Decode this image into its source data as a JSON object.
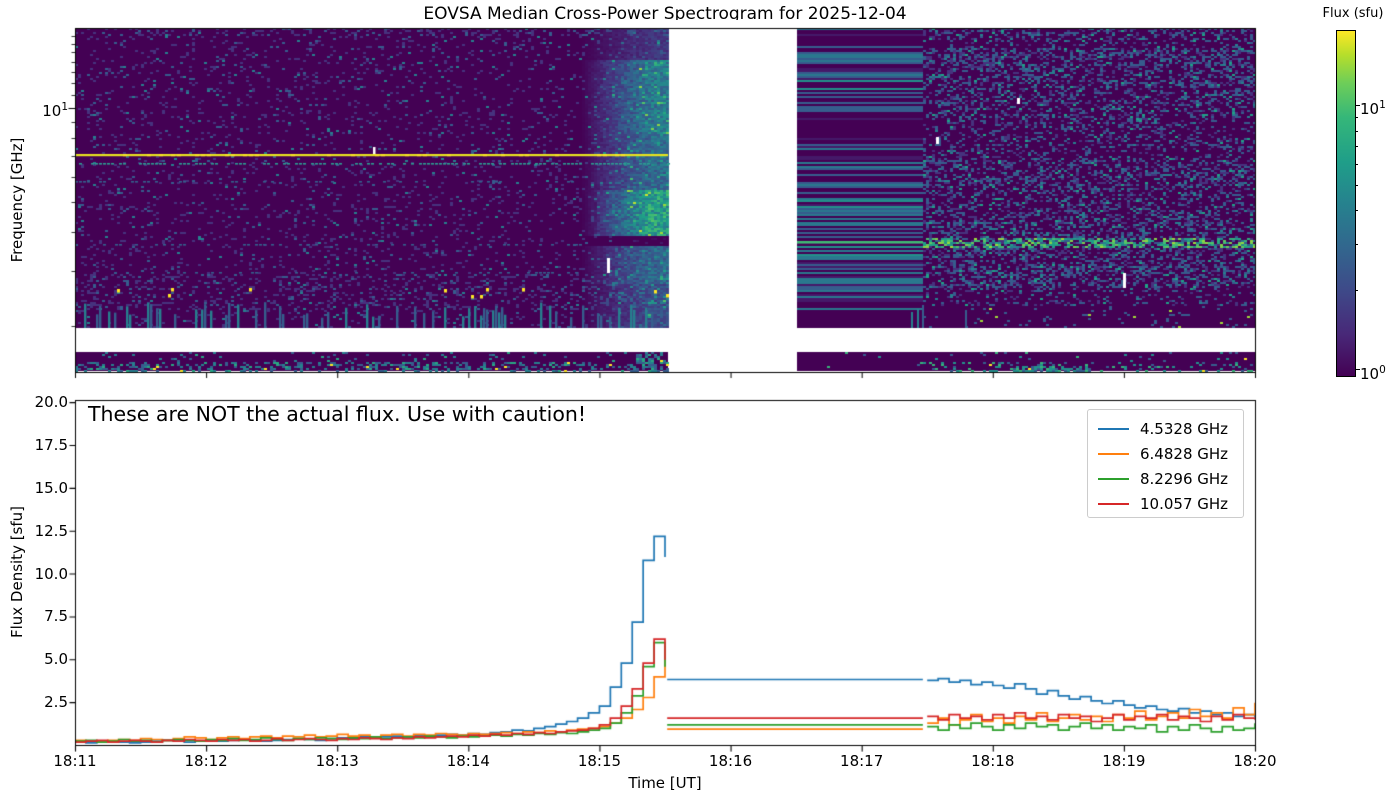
{
  "figure": {
    "title": "EOVSA Median Cross-Power Spectrogram for 2025-12-04"
  },
  "chart_data": [
    {
      "type": "heatmap",
      "subtype": "dynamic-spectrogram",
      "ylabel": "Frequency [GHz]",
      "yticklabels": [
        "10^1"
      ],
      "y_scale": "log",
      "y_range_ghz": [
        1.4,
        18
      ],
      "masked_band_ghz": [
        1.7,
        2.0
      ],
      "x_range_ut": [
        "18:11",
        "18:20"
      ],
      "data_gap_ut": [
        "18:15:31",
        "18:16:30"
      ],
      "colormap": "viridis",
      "colorbar_label": "Flux (sfu)",
      "colorbar_scale": "log",
      "colorbar_ticklabels": [
        "10^1",
        "10^0"
      ],
      "colorbar_range_sfu": [
        1,
        20
      ],
      "features": [
        {
          "name": "rfi-line",
          "freq_ghz": 7.1,
          "time_ut": [
            "18:11",
            "18:15:31"
          ],
          "appearance": "bright yellow narrowband line"
        },
        {
          "name": "burst",
          "time_ut": [
            "18:14:55",
            "18:15:31"
          ],
          "freq_ghz": [
            2,
            18
          ],
          "peak_freq_ghz": [
            4,
            6
          ],
          "appearance": "broadband brightening, yellow-green core"
        },
        {
          "name": "striped-flat-section",
          "time_ut": [
            "18:16:30",
            "18:17:28"
          ],
          "appearance": "horizontal blue/teal stripes"
        },
        {
          "name": "narrowband-line",
          "freq_ghz": 3.7,
          "time_ut": [
            "18:16:30",
            "18:20:00"
          ],
          "appearance": "green line"
        },
        {
          "name": "post-burst-enhancement",
          "time_ut": [
            "18:17:28",
            "18:20:00"
          ],
          "appearance": "granular teal noise"
        }
      ]
    },
    {
      "type": "line",
      "xlabel": "Time [UT]",
      "ylabel": "Flux Density [sfu]",
      "annotation": "These are NOT the actual flux. Use with caution!",
      "x_unit": "seconds after 18:11:00 UT",
      "x_range": [
        0,
        540
      ],
      "ylim": [
        0,
        20
      ],
      "xticklabels": [
        "18:11",
        "18:12",
        "18:13",
        "18:14",
        "18:15",
        "18:16",
        "18:17",
        "18:18",
        "18:19",
        "18:20"
      ],
      "yticklabels": [
        "2.5",
        "5.0",
        "7.5",
        "10.0",
        "12.5",
        "15.0",
        "17.5",
        "20.0"
      ],
      "legend_position": "upper right",
      "series": [
        {
          "name": "4.5328 GHz",
          "color": "#1f77b4",
          "segments": [
            {
              "t0": 0,
              "dt": 5,
              "values": [
                0.2,
                0.15,
                0.2,
                0.25,
                0.2,
                0.15,
                0.2,
                0.25,
                0.3,
                0.25,
                0.2,
                0.25,
                0.3,
                0.25,
                0.3,
                0.35,
                0.3,
                0.25,
                0.3,
                0.35,
                0.4,
                0.35,
                0.3,
                0.4,
                0.45,
                0.4,
                0.5,
                0.45,
                0.5,
                0.55,
                0.5,
                0.6,
                0.55,
                0.6,
                0.65,
                0.6,
                0.7,
                0.65,
                0.75,
                0.8,
                0.9,
                0.85,
                1.0,
                1.1,
                1.25,
                1.4,
                1.6,
                1.9,
                2.3,
                3.4,
                4.8,
                7.2,
                10.8,
                12.2,
                11.0
              ]
            },
            {
              "t0": 271,
              "dt": 117,
              "values": [
                3.85,
                3.85
              ]
            },
            {
              "t0": 390,
              "dt": 5,
              "values": [
                3.8,
                3.9,
                3.7,
                3.8,
                3.55,
                3.7,
                3.5,
                3.35,
                3.6,
                3.3,
                3.0,
                3.2,
                2.9,
                2.7,
                2.85,
                2.6,
                2.45,
                2.6,
                2.35,
                2.2,
                2.3,
                2.1,
                2.0,
                2.15,
                1.9,
                2.0,
                1.8,
                1.9,
                1.7,
                1.8,
                1.65
              ]
            }
          ]
        },
        {
          "name": "6.4828 GHz",
          "color": "#ff7f0e",
          "segments": [
            {
              "t0": 0,
              "dt": 5,
              "values": [
                0.3,
                0.25,
                0.2,
                0.3,
                0.35,
                0.3,
                0.4,
                0.35,
                0.3,
                0.4,
                0.5,
                0.45,
                0.35,
                0.45,
                0.5,
                0.4,
                0.5,
                0.55,
                0.45,
                0.55,
                0.5,
                0.6,
                0.5,
                0.55,
                0.65,
                0.55,
                0.6,
                0.5,
                0.6,
                0.65,
                0.55,
                0.65,
                0.6,
                0.7,
                0.65,
                0.6,
                0.7,
                0.65,
                0.7,
                0.75,
                0.7,
                0.8,
                0.75,
                0.85,
                0.8,
                0.9,
                0.95,
                1.0,
                1.1,
                1.3,
                1.6,
                2.1,
                2.8,
                4.0,
                5.8
              ]
            },
            {
              "t0": 271,
              "dt": 117,
              "values": [
                0.95,
                0.95
              ]
            },
            {
              "t0": 390,
              "dt": 5,
              "values": [
                1.3,
                1.6,
                1.2,
                1.5,
                1.8,
                1.4,
                1.6,
                1.3,
                1.7,
                1.5,
                1.9,
                1.4,
                1.6,
                1.8,
                1.5,
                1.7,
                1.4,
                1.8,
                1.6,
                2.0,
                1.5,
                1.7,
                1.9,
                1.6,
                2.1,
                1.7,
                1.9,
                1.6,
                2.2,
                1.8,
                2.5
              ]
            }
          ]
        },
        {
          "name": "8.2296 GHz",
          "color": "#2ca02c",
          "segments": [
            {
              "t0": 0,
              "dt": 5,
              "values": [
                0.25,
                0.3,
                0.2,
                0.25,
                0.35,
                0.25,
                0.3,
                0.2,
                0.3,
                0.35,
                0.3,
                0.25,
                0.35,
                0.3,
                0.4,
                0.3,
                0.35,
                0.45,
                0.35,
                0.3,
                0.4,
                0.35,
                0.45,
                0.4,
                0.35,
                0.45,
                0.4,
                0.5,
                0.4,
                0.45,
                0.5,
                0.45,
                0.55,
                0.5,
                0.45,
                0.55,
                0.5,
                0.55,
                0.6,
                0.55,
                0.65,
                0.6,
                0.7,
                0.65,
                0.75,
                0.7,
                0.8,
                0.9,
                1.0,
                1.3,
                1.9,
                2.9,
                4.6,
                6.0,
                4.6
              ]
            },
            {
              "t0": 271,
              "dt": 117,
              "values": [
                1.2,
                1.2
              ]
            },
            {
              "t0": 390,
              "dt": 5,
              "values": [
                1.1,
                0.9,
                1.2,
                1.0,
                1.3,
                1.1,
                0.9,
                1.2,
                1.0,
                1.3,
                1.1,
                1.2,
                0.9,
                1.1,
                1.3,
                1.0,
                1.2,
                0.9,
                1.1,
                1.0,
                1.2,
                0.8,
                1.1,
                0.9,
                1.2,
                1.0,
                0.8,
                1.1,
                0.9,
                1.0,
                1.3
              ]
            }
          ]
        },
        {
          "name": "10.057 GHz",
          "color": "#d62728",
          "segments": [
            {
              "t0": 0,
              "dt": 5,
              "values": [
                0.2,
                0.25,
                0.3,
                0.2,
                0.25,
                0.3,
                0.25,
                0.2,
                0.3,
                0.25,
                0.35,
                0.3,
                0.25,
                0.35,
                0.3,
                0.35,
                0.25,
                0.3,
                0.4,
                0.3,
                0.35,
                0.4,
                0.35,
                0.3,
                0.4,
                0.35,
                0.45,
                0.4,
                0.35,
                0.45,
                0.4,
                0.5,
                0.45,
                0.5,
                0.55,
                0.5,
                0.6,
                0.55,
                0.65,
                0.6,
                0.7,
                0.65,
                0.75,
                0.7,
                0.8,
                0.85,
                0.9,
                1.0,
                1.2,
                1.6,
                2.3,
                3.3,
                4.8,
                6.2,
                5.0
              ]
            },
            {
              "t0": 271,
              "dt": 117,
              "values": [
                1.6,
                1.6
              ]
            },
            {
              "t0": 390,
              "dt": 5,
              "values": [
                1.7,
                1.5,
                1.8,
                1.6,
                1.7,
                1.5,
                1.8,
                1.6,
                1.9,
                1.6,
                1.7,
                1.5,
                1.8,
                1.6,
                1.7,
                1.4,
                1.6,
                1.8,
                1.5,
                1.7,
                1.6,
                1.8,
                1.5,
                1.7,
                1.6,
                1.4,
                1.7,
                1.5,
                1.8,
                1.6,
                1.5
              ]
            }
          ]
        }
      ]
    }
  ]
}
